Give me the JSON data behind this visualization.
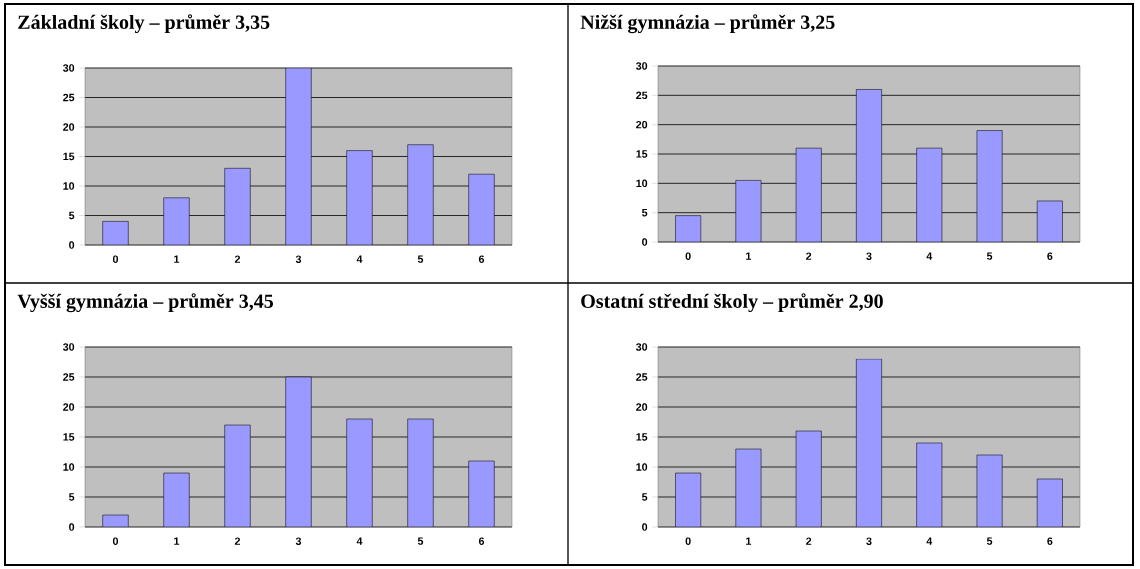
{
  "chart_data": [
    {
      "type": "bar",
      "title": "Základní  školy – průměr 3,35",
      "categories": [
        "0",
        "1",
        "2",
        "3",
        "4",
        "5",
        "6"
      ],
      "values": [
        4,
        8,
        13,
        30,
        16,
        17,
        12
      ],
      "color": "#9999ff",
      "ylim": [
        0,
        30
      ],
      "yticks": [
        0,
        5,
        10,
        15,
        20,
        25,
        30
      ],
      "grid": "y"
    },
    {
      "type": "bar",
      "title": "Nižší gymnázia – průměr 3,25",
      "categories": [
        "0",
        "1",
        "2",
        "3",
        "4",
        "5",
        "6"
      ],
      "values": [
        4.5,
        10.5,
        16,
        26,
        16,
        19,
        7
      ],
      "color": "#9999ff",
      "ylim": [
        0,
        30
      ],
      "yticks": [
        0,
        5,
        10,
        15,
        20,
        25,
        30
      ],
      "grid": "y"
    },
    {
      "type": "bar",
      "title": "Vyšší gymnázia – průměr 3,45",
      "categories": [
        "0",
        "1",
        "2",
        "3",
        "4",
        "5",
        "6"
      ],
      "values": [
        2,
        9,
        17,
        25,
        18,
        18,
        11
      ],
      "color": "#9999ff",
      "ylim": [
        0,
        30
      ],
      "yticks": [
        0,
        5,
        10,
        15,
        20,
        25,
        30
      ],
      "grid": "y"
    },
    {
      "type": "bar",
      "title": "Ostatní střední školy – průměr 2,90",
      "categories": [
        "0",
        "1",
        "2",
        "3",
        "4",
        "5",
        "6"
      ],
      "values": [
        9,
        13,
        16,
        28,
        14,
        12,
        8
      ],
      "color": "#9999ff",
      "ylim": [
        0,
        30
      ],
      "yticks": [
        0,
        5,
        10,
        15,
        20,
        25,
        30
      ],
      "grid": "y"
    }
  ]
}
